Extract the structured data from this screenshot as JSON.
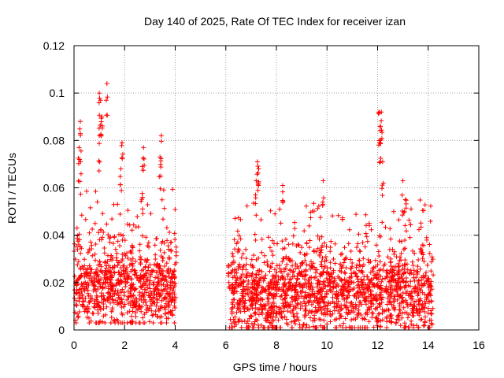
{
  "chart_data": {
    "type": "scatter",
    "title": "Day 140 of 2025, Rate Of TEC Index for receiver izan",
    "xlabel": "GPS time / hours",
    "ylabel": "ROTI / TECUs",
    "xlim": [
      0,
      16
    ],
    "ylim": [
      0,
      0.12
    ],
    "xticks": [
      0,
      2,
      4,
      6,
      8,
      10,
      12,
      14,
      16
    ],
    "xtick_labels": [
      "0",
      "2",
      "4",
      "6",
      "8",
      "10",
      "12",
      "14",
      "16"
    ],
    "yticks": [
      0,
      0.02,
      0.04,
      0.06,
      0.08,
      0.1,
      0.12
    ],
    "ytick_labels": [
      "0",
      "0.02",
      "0.04",
      "0.06",
      "0.08",
      "0.1",
      "0.12"
    ],
    "grid": true,
    "marker": "+",
    "marker_color": "#ff0000",
    "data_segments": [
      {
        "x_start": 0.0,
        "x_end": 4.05,
        "typical_min": 0.005,
        "typical_median": 0.018,
        "typical_max": 0.045
      },
      {
        "x_start": 6.1,
        "x_end": 14.2,
        "typical_min": 0.003,
        "typical_median": 0.015,
        "typical_max": 0.04
      }
    ],
    "peaks": [
      {
        "x": 0.25,
        "y": 0.088
      },
      {
        "x": 0.2,
        "y": 0.077
      },
      {
        "x": 0.25,
        "y": 0.071
      },
      {
        "x": 1.0,
        "y": 0.1
      },
      {
        "x": 1.05,
        "y": 0.097
      },
      {
        "x": 1.1,
        "y": 0.09
      },
      {
        "x": 1.0,
        "y": 0.082
      },
      {
        "x": 1.3,
        "y": 0.104
      },
      {
        "x": 1.9,
        "y": 0.079
      },
      {
        "x": 1.85,
        "y": 0.068
      },
      {
        "x": 2.75,
        "y": 0.077
      },
      {
        "x": 2.7,
        "y": 0.069
      },
      {
        "x": 3.45,
        "y": 0.082
      },
      {
        "x": 3.4,
        "y": 0.073
      },
      {
        "x": 7.25,
        "y": 0.071
      },
      {
        "x": 7.3,
        "y": 0.068
      },
      {
        "x": 7.2,
        "y": 0.063
      },
      {
        "x": 8.25,
        "y": 0.061
      },
      {
        "x": 9.85,
        "y": 0.063
      },
      {
        "x": 12.05,
        "y": 0.092
      },
      {
        "x": 12.15,
        "y": 0.092
      },
      {
        "x": 12.1,
        "y": 0.086
      },
      {
        "x": 12.1,
        "y": 0.079
      },
      {
        "x": 12.2,
        "y": 0.071
      },
      {
        "x": 13.0,
        "y": 0.063
      },
      {
        "x": 13.1,
        "y": 0.055
      }
    ]
  }
}
